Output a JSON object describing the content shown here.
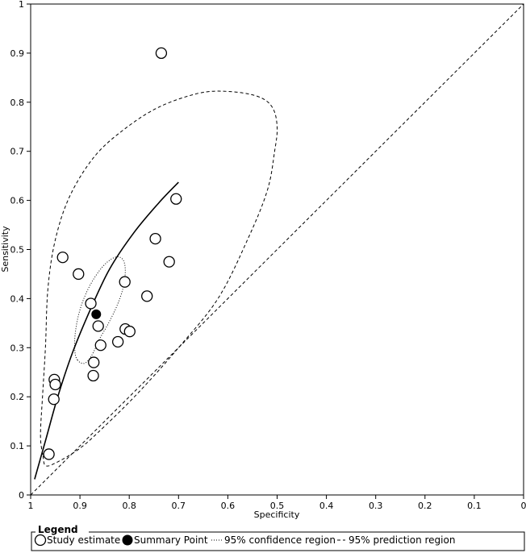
{
  "chart_data": {
    "type": "scatter",
    "title": "",
    "xlabel": "Specificity",
    "ylabel": "Sensitivity",
    "x_reversed": true,
    "xlim": [
      1,
      0
    ],
    "ylim": [
      0,
      1
    ],
    "xticks": [
      "1",
      "0.9",
      "0.8",
      "0.7",
      "0.6",
      "0.5",
      "0.4",
      "0.3",
      "0.2",
      "0.1",
      "0"
    ],
    "yticks": [
      "0",
      "0.1",
      "0.2",
      "0.3",
      "0.4",
      "0.5",
      "0.6",
      "0.7",
      "0.8",
      "0.9",
      "1"
    ],
    "grid": false,
    "study_estimates": [
      {
        "x": 0.735,
        "y": 0.9
      },
      {
        "x": 0.705,
        "y": 0.603
      },
      {
        "x": 0.747,
        "y": 0.522
      },
      {
        "x": 0.719,
        "y": 0.475
      },
      {
        "x": 0.935,
        "y": 0.484
      },
      {
        "x": 0.903,
        "y": 0.45
      },
      {
        "x": 0.809,
        "y": 0.434
      },
      {
        "x": 0.764,
        "y": 0.405
      },
      {
        "x": 0.878,
        "y": 0.39
      },
      {
        "x": 0.863,
        "y": 0.344
      },
      {
        "x": 0.808,
        "y": 0.338
      },
      {
        "x": 0.799,
        "y": 0.333
      },
      {
        "x": 0.823,
        "y": 0.312
      },
      {
        "x": 0.858,
        "y": 0.305
      },
      {
        "x": 0.872,
        "y": 0.27
      },
      {
        "x": 0.873,
        "y": 0.243
      },
      {
        "x": 0.952,
        "y": 0.235
      },
      {
        "x": 0.95,
        "y": 0.225
      },
      {
        "x": 0.953,
        "y": 0.195
      },
      {
        "x": 0.963,
        "y": 0.083
      }
    ],
    "summary_point": {
      "x": 0.867,
      "y": 0.368
    },
    "sroc_curve": [
      {
        "x": 0.992,
        "y": 0.032
      },
      {
        "x": 0.97,
        "y": 0.11
      },
      {
        "x": 0.945,
        "y": 0.2
      },
      {
        "x": 0.915,
        "y": 0.29
      },
      {
        "x": 0.88,
        "y": 0.375
      },
      {
        "x": 0.84,
        "y": 0.46
      },
      {
        "x": 0.79,
        "y": 0.535
      },
      {
        "x": 0.74,
        "y": 0.595
      },
      {
        "x": 0.7,
        "y": 0.637
      }
    ],
    "confidence_region": [
      {
        "x": 0.905,
        "y": 0.275
      },
      {
        "x": 0.895,
        "y": 0.268
      },
      {
        "x": 0.885,
        "y": 0.272
      },
      {
        "x": 0.873,
        "y": 0.29
      },
      {
        "x": 0.86,
        "y": 0.318
      },
      {
        "x": 0.842,
        "y": 0.35
      },
      {
        "x": 0.825,
        "y": 0.385
      },
      {
        "x": 0.813,
        "y": 0.42
      },
      {
        "x": 0.808,
        "y": 0.455
      },
      {
        "x": 0.812,
        "y": 0.478
      },
      {
        "x": 0.825,
        "y": 0.485
      },
      {
        "x": 0.845,
        "y": 0.474
      },
      {
        "x": 0.867,
        "y": 0.448
      },
      {
        "x": 0.887,
        "y": 0.412
      },
      {
        "x": 0.902,
        "y": 0.37
      },
      {
        "x": 0.91,
        "y": 0.325
      },
      {
        "x": 0.91,
        "y": 0.29
      }
    ],
    "prediction_region": [
      {
        "x": 0.975,
        "y": 0.08
      },
      {
        "x": 0.97,
        "y": 0.06
      },
      {
        "x": 0.95,
        "y": 0.065
      },
      {
        "x": 0.9,
        "y": 0.095
      },
      {
        "x": 0.85,
        "y": 0.14
      },
      {
        "x": 0.78,
        "y": 0.21
      },
      {
        "x": 0.7,
        "y": 0.3
      },
      {
        "x": 0.62,
        "y": 0.4
      },
      {
        "x": 0.56,
        "y": 0.52
      },
      {
        "x": 0.52,
        "y": 0.62
      },
      {
        "x": 0.505,
        "y": 0.7
      },
      {
        "x": 0.5,
        "y": 0.75
      },
      {
        "x": 0.51,
        "y": 0.79
      },
      {
        "x": 0.54,
        "y": 0.812
      },
      {
        "x": 0.6,
        "y": 0.822
      },
      {
        "x": 0.66,
        "y": 0.818
      },
      {
        "x": 0.74,
        "y": 0.79
      },
      {
        "x": 0.81,
        "y": 0.745
      },
      {
        "x": 0.87,
        "y": 0.69
      },
      {
        "x": 0.92,
        "y": 0.61
      },
      {
        "x": 0.95,
        "y": 0.52
      },
      {
        "x": 0.965,
        "y": 0.42
      },
      {
        "x": 0.97,
        "y": 0.3
      },
      {
        "x": 0.976,
        "y": 0.2
      },
      {
        "x": 0.98,
        "y": 0.12
      }
    ],
    "chance_line": [
      {
        "x": 1,
        "y": 0
      },
      {
        "x": 0,
        "y": 1
      }
    ],
    "legend": {
      "title": "Legend",
      "placement": "bottom",
      "items": [
        {
          "label": "Study estimate",
          "marker": "open-circle"
        },
        {
          "label": "Summary Point",
          "marker": "filled-circle"
        },
        {
          "label": "95% confidence region",
          "marker": "dotted-line"
        },
        {
          "label": "95% prediction region",
          "marker": "dashed-line"
        }
      ]
    }
  }
}
